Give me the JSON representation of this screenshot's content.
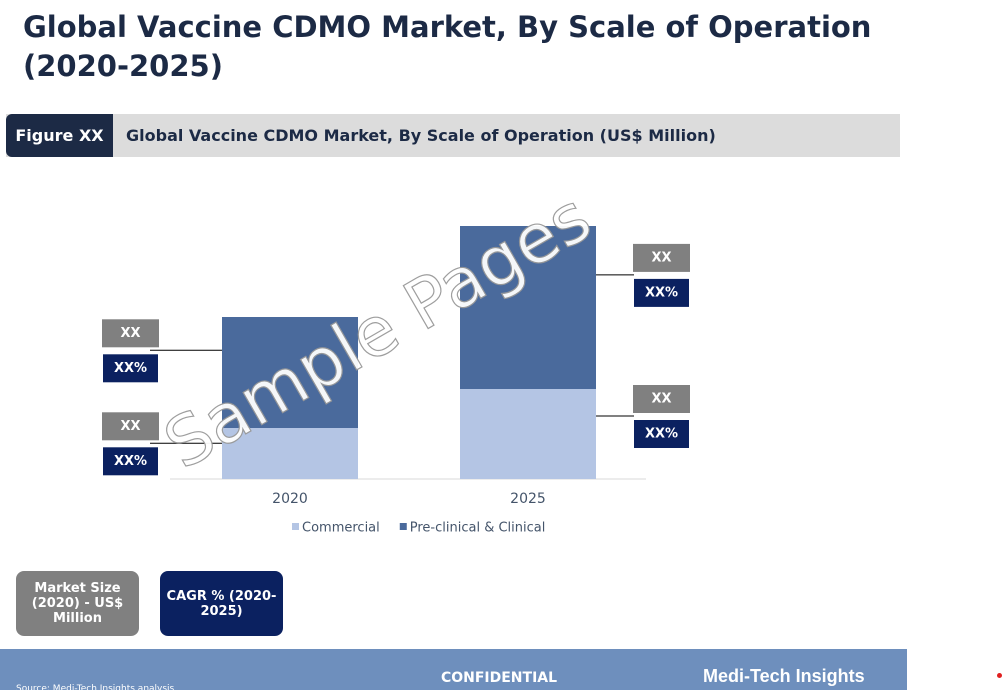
{
  "page_title": "Global Vaccine CDMO Market, By Scale of Operation (2020-2025)",
  "figure": {
    "tag": "Figure XX",
    "caption": "Global Vaccine CDMO Market, By Scale of Operation (US$ Million)"
  },
  "chart_data": {
    "type": "bar",
    "stacked": true,
    "categories": [
      "2020",
      "2025"
    ],
    "series": [
      {
        "name": "Commercial",
        "color": "#b4c5e4",
        "values": [
          51,
          90
        ],
        "labels": [
          {
            "value": "XX",
            "share": "XX%"
          },
          {
            "value": "XX",
            "share": "XX%"
          }
        ]
      },
      {
        "name": "Pre-clinical & Clinical",
        "color": "#4a6a9c",
        "values": [
          111,
          163
        ],
        "labels": [
          {
            "value": "XX",
            "share": "XX%"
          },
          {
            "value": "XX",
            "share": "XX%"
          }
        ]
      }
    ],
    "ylim": [
      0,
      260
    ]
  },
  "boxes": [
    "Market Size (2020) - US$ Million",
    "CAGR % (2020-2025)"
  ],
  "watermark": "Sample Pages",
  "footer": {
    "confidential": "CONFIDENTIAL",
    "brand": "Medi-Tech Insights",
    "source": "Source: Medi-Tech Insights analysis"
  }
}
